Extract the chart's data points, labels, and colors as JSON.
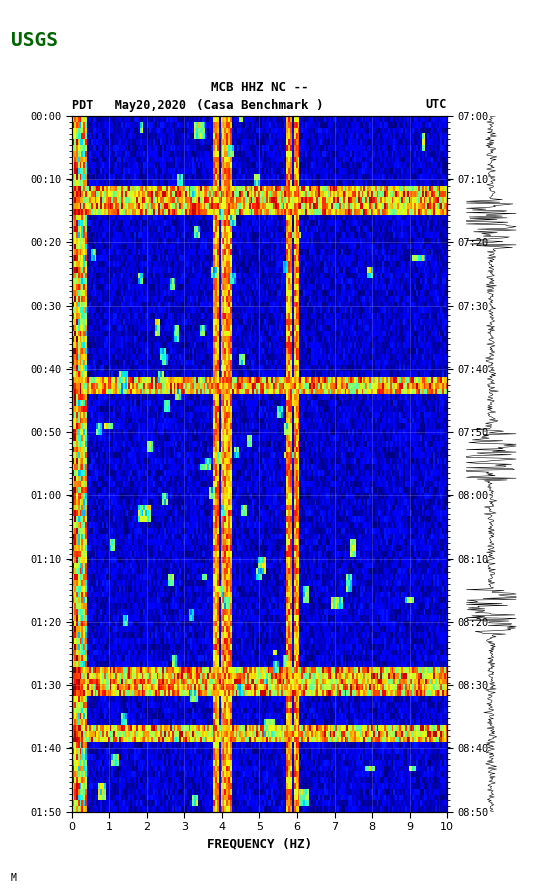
{
  "title_line1": "MCB HHZ NC --",
  "title_line2": "(Casa Benchmark )",
  "date_label": "PDT   May20,2020",
  "left_timezone": "PDT",
  "right_timezone": "UTC",
  "left_times": [
    "00:00",
    "00:10",
    "00:20",
    "00:30",
    "00:40",
    "00:50",
    "01:00",
    "01:10",
    "01:20",
    "01:30",
    "01:40",
    "01:50"
  ],
  "right_times": [
    "07:00",
    "07:10",
    "07:20",
    "07:30",
    "07:40",
    "07:50",
    "08:00",
    "08:10",
    "08:20",
    "08:30",
    "08:40",
    "08:50"
  ],
  "freq_min": 0,
  "freq_max": 10,
  "freq_ticks": [
    0,
    1,
    2,
    3,
    4,
    5,
    6,
    7,
    8,
    9,
    10
  ],
  "xlabel": "FREQUENCY (HZ)",
  "background_color": "#ffffff",
  "spectrogram_cmap": "jet",
  "n_time_bins": 120,
  "n_freq_bins": 200,
  "vertical_lines_freq": [
    3.8,
    4.0,
    4.15,
    5.8,
    6.0
  ],
  "strong_horizontal_rows": [
    12,
    45,
    95,
    105
  ],
  "usgs_color": "#006400"
}
